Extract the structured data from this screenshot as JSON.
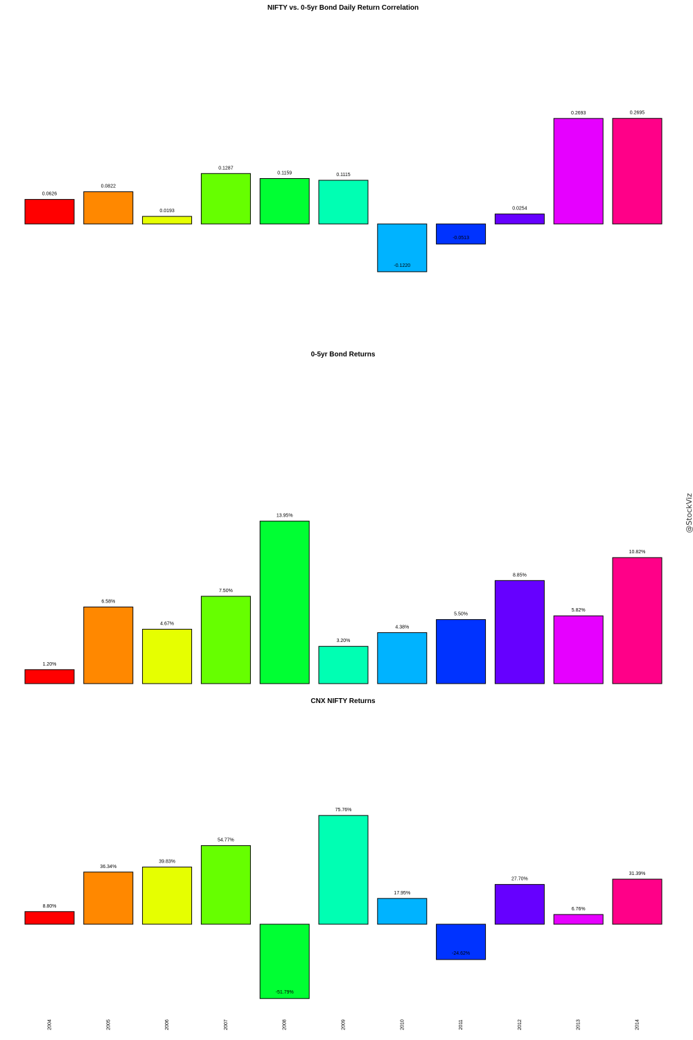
{
  "watermark": "@StockViz",
  "colors": [
    "#FF0000",
    "#FF8800",
    "#E6FF00",
    "#66FF00",
    "#00FF33",
    "#00FFB3",
    "#00B3FF",
    "#0033FF",
    "#6600FF",
    "#E600FF",
    "#FF0088"
  ],
  "chart_data": [
    {
      "type": "bar",
      "title": "NIFTY vs. 0-5yr Bond Daily Return Correlation",
      "categories": [
        "2004",
        "2005",
        "2006",
        "2007",
        "2008",
        "2009",
        "2010",
        "2011",
        "2012",
        "2013",
        "2014"
      ],
      "values": [
        0.0626,
        0.0822,
        0.0193,
        0.1287,
        0.1159,
        0.1115,
        -0.122,
        -0.0513,
        0.0254,
        0.2693,
        0.2695
      ],
      "labels": [
        "0.0626",
        "0.0822",
        "0.0193",
        "0.1287",
        "0.1159",
        "0.1115",
        "-0.1220",
        "-0.0513",
        "0.0254",
        "0.2693",
        "0.2695"
      ],
      "xlabel": "",
      "ylabel": "",
      "axes": "none",
      "grid": false
    },
    {
      "type": "bar",
      "title": "0-5yr Bond Returns",
      "categories": [
        "2004",
        "2005",
        "2006",
        "2007",
        "2008",
        "2009",
        "2010",
        "2011",
        "2012",
        "2013",
        "2014"
      ],
      "values": [
        1.2,
        6.58,
        4.67,
        7.5,
        13.95,
        3.2,
        4.38,
        5.5,
        8.85,
        5.82,
        10.82
      ],
      "labels": [
        "1.20%",
        "6.58%",
        "4.67%",
        "7.50%",
        "13.95%",
        "3.20%",
        "4.38%",
        "5.50%",
        "8.85%",
        "5.82%",
        "10.82%"
      ],
      "unit": "%",
      "xlabel": "",
      "ylabel": "",
      "axes": "none",
      "grid": false
    },
    {
      "type": "bar",
      "title": "CNX NIFTY Returns",
      "categories": [
        "2004",
        "2005",
        "2006",
        "2007",
        "2008",
        "2009",
        "2010",
        "2011",
        "2012",
        "2013",
        "2014"
      ],
      "values": [
        8.8,
        36.34,
        39.83,
        54.77,
        -51.79,
        75.76,
        17.95,
        -24.62,
        27.7,
        6.76,
        31.39
      ],
      "labels": [
        "8.80%",
        "36.34%",
        "39.83%",
        "54.77%",
        "-51.79%",
        "75.76%",
        "17.95%",
        "-24.62%",
        "27.70%",
        "6.76%",
        "31.39%"
      ],
      "unit": "%",
      "xlabel": "",
      "ylabel": "",
      "axes": "none",
      "grid": false
    }
  ]
}
